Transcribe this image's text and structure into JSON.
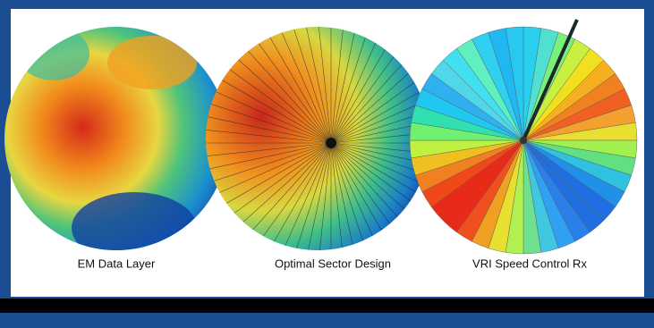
{
  "panels": [
    {
      "label": "EM Data Layer"
    },
    {
      "label": "Optimal Sector Design"
    },
    {
      "label": "VRI Speed Control Rx"
    }
  ]
}
